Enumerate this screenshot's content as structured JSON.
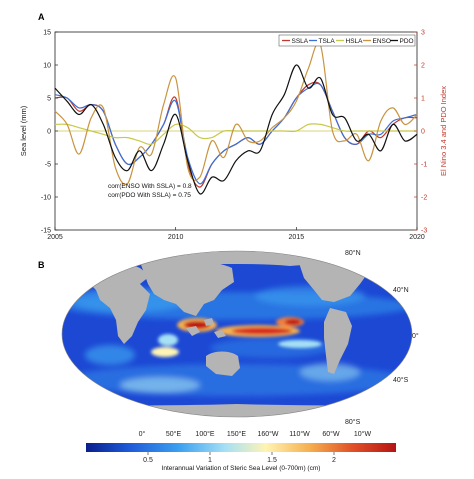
{
  "chart_data": [
    {
      "panel": "A",
      "type": "line",
      "ylabel": "Sea level (mm)",
      "y2label": "El Nino 3.4 and PDO Index",
      "xlim": [
        2005,
        2020
      ],
      "ylim": [
        -15,
        15
      ],
      "y2lim": [
        -3,
        3
      ],
      "xticks": [
        "2005",
        "2010",
        "2015",
        "2020"
      ],
      "yticks": [
        "-15",
        "-10",
        "-5",
        "0",
        "5",
        "10",
        "15"
      ],
      "y2ticks": [
        "-3",
        "-2",
        "-1",
        "0",
        "1",
        "2",
        "3"
      ],
      "legend_position": "top-right",
      "annotations": [
        "corr(ENSO With SSLA) = 0.8",
        "corr(PDO With SSLA) = 0.75"
      ],
      "series": [
        {
          "name": "SSLA",
          "color": "#c0392b",
          "axis": "left",
          "x": [
            2005.0,
            2005.5,
            2006.0,
            2006.5,
            2007.0,
            2007.5,
            2008.0,
            2008.5,
            2009.0,
            2009.5,
            2010.0,
            2010.5,
            2011.0,
            2011.5,
            2012.0,
            2012.5,
            2013.0,
            2013.5,
            2014.0,
            2014.5,
            2015.0,
            2015.5,
            2016.0,
            2016.5,
            2017.0,
            2017.5,
            2018.0,
            2018.5,
            2019.0,
            2019.5,
            2020.0
          ],
          "y": [
            5,
            5,
            3,
            4,
            3,
            -2,
            -5,
            -4,
            -2,
            1,
            5,
            -5,
            -8.5,
            -5,
            -3,
            -2,
            -1,
            -2,
            0,
            2,
            5,
            7,
            7,
            3,
            -1,
            -2,
            0,
            -1,
            1,
            2,
            2
          ]
        },
        {
          "name": "TSLA",
          "color": "#3a6fd8",
          "axis": "left",
          "x": [
            2005.0,
            2005.5,
            2006.0,
            2006.5,
            2007.0,
            2007.5,
            2008.0,
            2008.5,
            2009.0,
            2009.5,
            2010.0,
            2010.5,
            2011.0,
            2011.5,
            2012.0,
            2012.5,
            2013.0,
            2013.5,
            2014.0,
            2014.5,
            2015.0,
            2015.5,
            2016.0,
            2016.5,
            2017.0,
            2017.5,
            2018.0,
            2018.5,
            2019.0,
            2019.5,
            2020.0
          ],
          "y": [
            5.5,
            5,
            3.5,
            4,
            3,
            -2,
            -5,
            -4,
            -2,
            1,
            4.5,
            -4,
            -8,
            -5,
            -3,
            -2,
            -1,
            -2,
            0,
            2,
            5,
            6.5,
            7,
            3,
            -1,
            -2,
            -0.5,
            -0.5,
            1.5,
            2,
            2.5
          ]
        },
        {
          "name": "HSLA",
          "color": "#c8c84a",
          "axis": "left",
          "x": [
            2005.0,
            2005.5,
            2006.0,
            2006.5,
            2007.0,
            2007.5,
            2008.0,
            2008.5,
            2009.0,
            2009.5,
            2010.0,
            2010.5,
            2011.0,
            2011.5,
            2012.0,
            2012.5,
            2013.0,
            2013.5,
            2014.0,
            2014.5,
            2015.0,
            2015.5,
            2016.0,
            2016.5,
            2017.0,
            2017.5,
            2018.0,
            2018.5,
            2019.0,
            2019.5,
            2020.0
          ],
          "y": [
            1,
            1,
            0.5,
            0,
            -0.5,
            -1,
            -1,
            -1.5,
            -2,
            -0.5,
            1,
            0.5,
            -1,
            -1,
            0,
            0,
            0,
            0,
            0,
            0,
            0,
            1,
            1,
            0.5,
            0,
            0,
            0,
            0,
            0,
            0,
            0
          ]
        },
        {
          "name": "ENSO",
          "color": "#c89440",
          "axis": "right",
          "x": [
            2005.0,
            2005.5,
            2006.0,
            2006.5,
            2007.0,
            2007.5,
            2008.0,
            2008.5,
            2009.0,
            2009.5,
            2010.0,
            2010.5,
            2011.0,
            2011.5,
            2012.0,
            2012.5,
            2013.0,
            2013.5,
            2014.0,
            2014.5,
            2015.0,
            2015.5,
            2016.0,
            2016.5,
            2017.0,
            2017.5,
            2018.0,
            2018.5,
            2019.0,
            2019.5,
            2020.0
          ],
          "y": [
            0.6,
            0.2,
            -0.7,
            0.4,
            0.7,
            -1.1,
            -1.6,
            -0.5,
            -0.7,
            0.8,
            1.6,
            -1.1,
            -1.4,
            -0.3,
            -0.8,
            0.2,
            -0.3,
            -0.3,
            0.1,
            0.4,
            0.9,
            1.9,
            2.6,
            0,
            -0.3,
            -0.1,
            -0.9,
            0.3,
            0.7,
            0.2,
            0.5
          ]
        },
        {
          "name": "PDO",
          "color": "#111111",
          "axis": "right",
          "x": [
            2005.0,
            2005.5,
            2006.0,
            2006.5,
            2007.0,
            2007.5,
            2008.0,
            2008.5,
            2009.0,
            2009.5,
            2010.0,
            2010.5,
            2011.0,
            2011.5,
            2012.0,
            2012.5,
            2013.0,
            2013.5,
            2014.0,
            2014.5,
            2015.0,
            2015.5,
            2016.0,
            2016.5,
            2017.0,
            2017.5,
            2018.0,
            2018.5,
            2019.0,
            2019.5,
            2020.0
          ],
          "y": [
            1.3,
            0.9,
            0.5,
            0.8,
            0.2,
            -0.8,
            -1.2,
            -0.6,
            -1.2,
            -0.4,
            0.5,
            -0.9,
            -1.9,
            -1.4,
            -1.5,
            -0.9,
            -0.6,
            -0.6,
            0.5,
            1.1,
            2,
            1.3,
            1.6,
            0.5,
            0.4,
            -0.3,
            -0.1,
            -0.6,
            0.2,
            -0.3,
            -0.1
          ]
        }
      ]
    },
    {
      "panel": "B",
      "type": "heatmap",
      "colorbar_label": "Interannual Variation of Steric Sea Level  (0-700m) (cm)",
      "colorbar_ticks": [
        "0.5",
        "1",
        "1.5",
        "2"
      ],
      "colorbar_range": [
        0,
        2.5
      ],
      "lon_labels": [
        "0°",
        "50°E",
        "100°E",
        "150°E",
        "160°W",
        "110°W",
        "60°W",
        "10°W"
      ],
      "lat_labels": [
        "80°N",
        "40°N",
        "0°",
        "40°S",
        "80°S"
      ]
    }
  ],
  "colors": {
    "colormap": [
      "#0a1e8c",
      "#1e5ad8",
      "#3ca0f0",
      "#a6e0f4",
      "#fff4b4",
      "#f5b050",
      "#e05028",
      "#b41414"
    ],
    "land": "#b4b4b4",
    "zero_line": "#c8c850"
  }
}
